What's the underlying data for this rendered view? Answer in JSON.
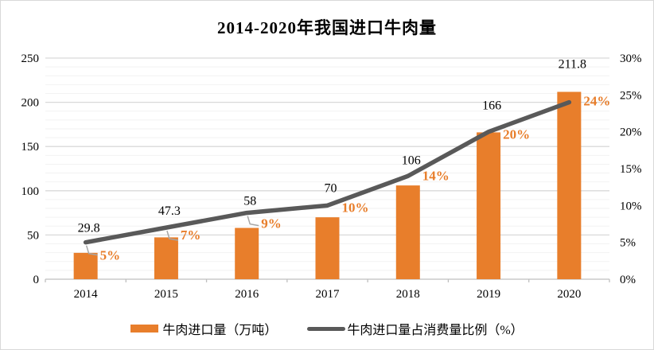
{
  "title": "2014-2020年我国进口牛肉量",
  "chart_data": {
    "type": "bar+line",
    "title": "2014-2020年我国进口牛肉量",
    "categories": [
      "2014",
      "2015",
      "2016",
      "2017",
      "2018",
      "2019",
      "2020"
    ],
    "series": [
      {
        "name": "牛肉进口量（万吨）",
        "type": "bar",
        "axis": "left",
        "values": [
          29.8,
          47.3,
          58,
          70,
          106,
          166,
          211.8
        ],
        "labels": [
          "29.8",
          "47.3",
          "58",
          "70",
          "106",
          "166",
          "211.8"
        ],
        "color": "#e87e2b"
      },
      {
        "name": "牛肉进口量占消费量比例（%）",
        "type": "line",
        "axis": "right",
        "values": [
          5,
          7,
          9,
          10,
          14,
          20,
          24
        ],
        "labels": [
          "5%",
          "7%",
          "9%",
          "10%",
          "14%",
          "20%",
          "24%"
        ],
        "color": "#595959"
      }
    ],
    "left_axis": {
      "min": 0,
      "max": 250,
      "ticks": [
        "0",
        "50",
        "100",
        "150",
        "200",
        "250"
      ]
    },
    "right_axis": {
      "min": 0,
      "max": 30,
      "ticks": [
        "0%",
        "5%",
        "10%",
        "15%",
        "20%",
        "25%",
        "30%"
      ]
    },
    "legend_position": "bottom",
    "grid": "horizontal major and minor gridlines",
    "colors": {
      "bar": "#e87e2b",
      "line": "#595959",
      "percent_labels": "#e87e2b",
      "value_labels": "#000000",
      "major_grid": "#d9d9d9",
      "minor_grid": "#f2f2f2",
      "axis_line": "#bfbfbf",
      "leader_line": "#a6a6a6"
    }
  }
}
